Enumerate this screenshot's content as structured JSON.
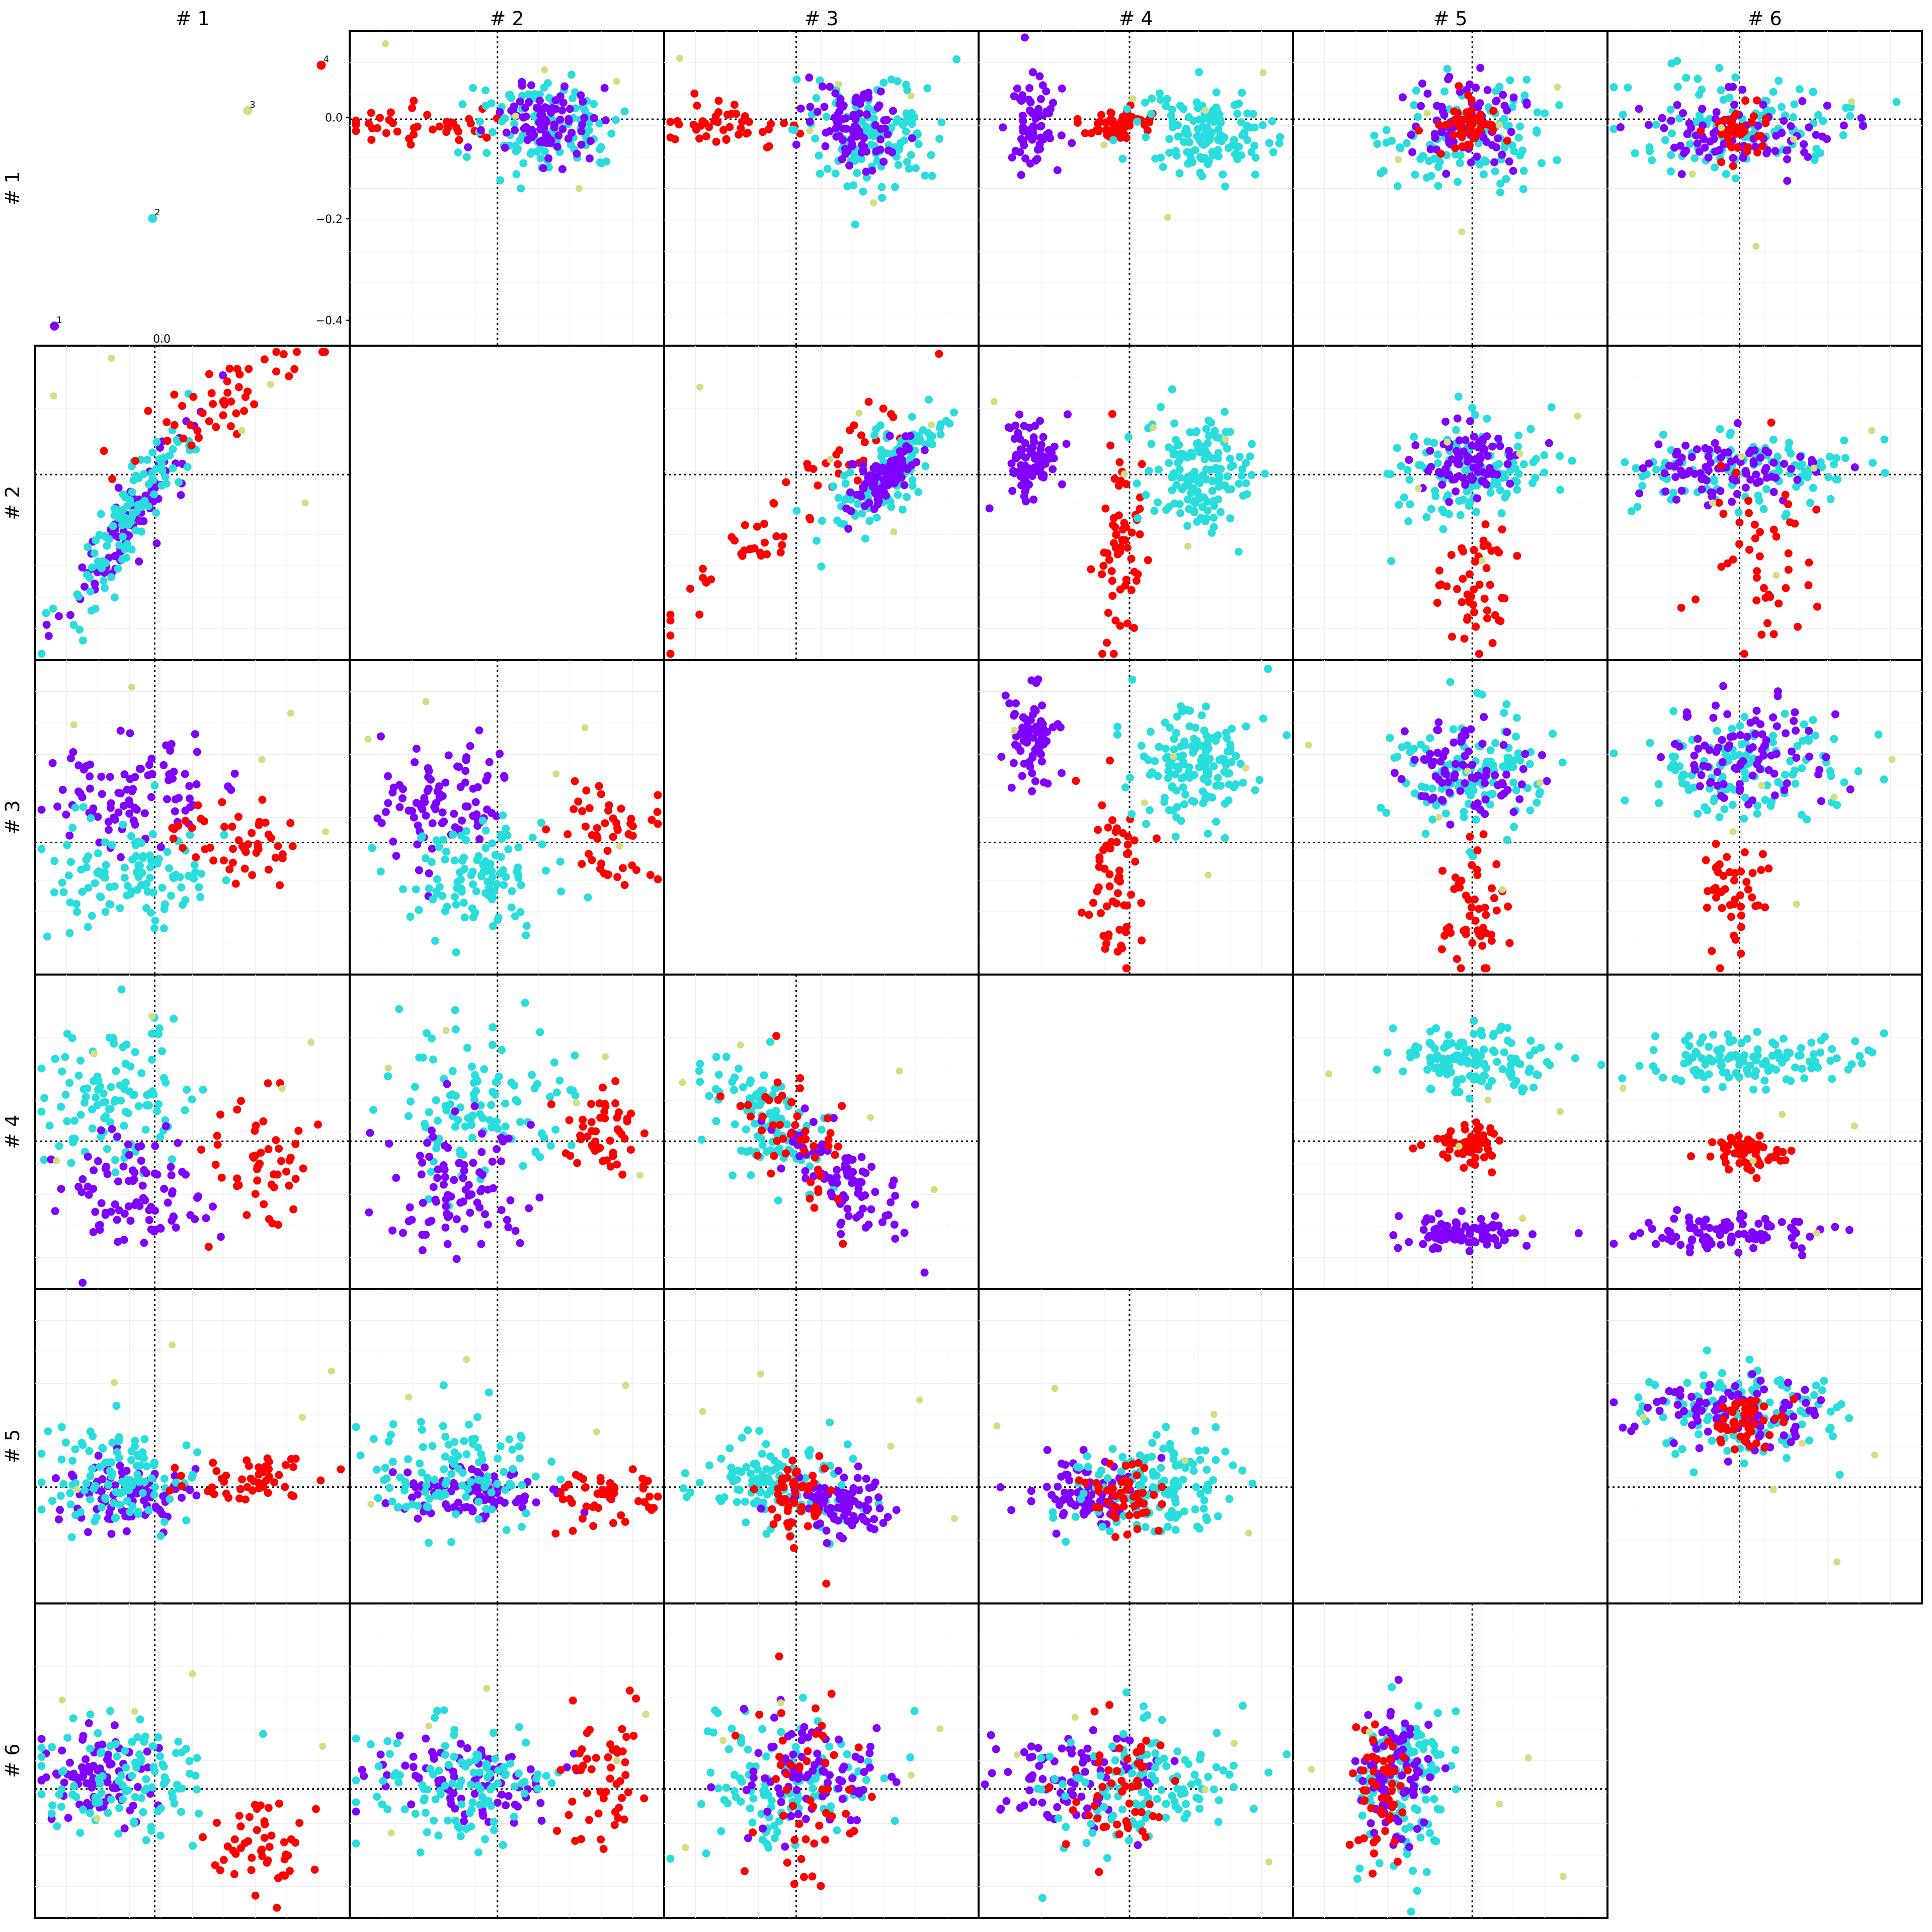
{
  "chart_data": {
    "type": "scatter",
    "layout": "scatter-matrix",
    "column_titles": [
      "# 1",
      "# 2",
      "# 3",
      "# 4",
      "# 5",
      "# 6"
    ],
    "row_titles": [
      "# 1",
      "# 2",
      "# 3",
      "# 4",
      "# 5",
      "# 6"
    ],
    "cluster_colors": {
      "purple": "#8000ff",
      "cyan": "#2adddd",
      "red": "#ff0000",
      "olive": "#d4dd80"
    },
    "panel_1_1": {
      "tick_label_x": "0.0",
      "points": [
        {
          "id": "1",
          "x": -0.35,
          "y": -0.42,
          "color": "#8000ff"
        },
        {
          "id": "2",
          "x": -0.03,
          "y": -0.23,
          "color": "#2adddd"
        },
        {
          "id": "3",
          "x": 0.28,
          "y": -0.04,
          "color": "#d4dd80"
        },
        {
          "id": "4",
          "x": 0.52,
          "y": 0.04,
          "color": "#ff0000"
        }
      ]
    },
    "panel_1_2": {
      "yticks": [
        0.0,
        -0.2,
        -0.4
      ],
      "ytick_labels": [
        "0.0",
        "−0.2",
        "−0.4"
      ],
      "ylim": [
        -0.45,
        0.17
      ]
    },
    "note": "Off-diagonal panels are pairwise scatter plots of components #1–#6 colored by cluster; the individual point values are not printed."
  }
}
